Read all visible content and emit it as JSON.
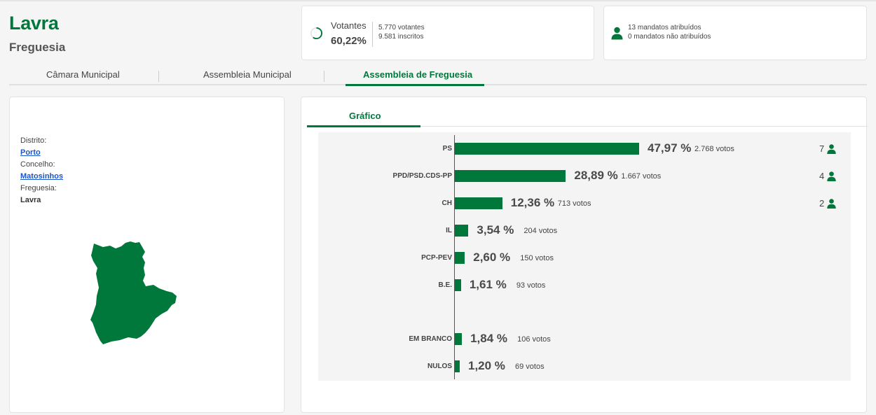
{
  "header": {
    "title": "Lavra",
    "subtitle": "Freguesia"
  },
  "votantes": {
    "label": "Votantes",
    "percent": "60,22%",
    "percent_value": 60.22,
    "voters": "5.770 votantes",
    "registered": "9.581 inscritos"
  },
  "mandatos": {
    "assigned": "13 mandatos atribuídos",
    "unassigned": "0 mandatos não atribuídos"
  },
  "tabs": [
    {
      "label": "Câmara Municipal"
    },
    {
      "label": "Assembleia Municipal"
    },
    {
      "label": "Assembleia de Freguesia"
    }
  ],
  "location": {
    "distrito_label": "Distrito:",
    "distrito": "Porto",
    "concelho_label": "Concelho:",
    "concelho": "Matosinhos",
    "freguesia_label": "Freguesia:",
    "freguesia": "Lavra"
  },
  "chart_tab": "Gráfico",
  "colors": {
    "accent": "#00783b",
    "link": "#1a55c9"
  },
  "chart_data": {
    "type": "bar",
    "orientation": "horizontal",
    "categories": [
      "PS",
      "PPD/PSD.CDS-PP",
      "CH",
      "IL",
      "PCP-PEV",
      "B.E.",
      "EM BRANCO",
      "NULOS"
    ],
    "values": [
      47.97,
      28.89,
      12.36,
      3.54,
      2.6,
      1.61,
      1.84,
      1.2
    ],
    "rows": [
      {
        "party": "PS",
        "pct": "47,97 %",
        "value": 47.97,
        "votos": "2.768 votos",
        "seats": "7"
      },
      {
        "party": "PPD/PSD.CDS-PP",
        "pct": "28,89 %",
        "value": 28.89,
        "votos": "1.667 votos",
        "seats": "4"
      },
      {
        "party": "CH",
        "pct": "12,36 %",
        "value": 12.36,
        "votos": "713 votos",
        "seats": "2"
      },
      {
        "party": "IL",
        "pct": "3,54 %",
        "value": 3.54,
        "votos": "204 votos",
        "seats": ""
      },
      {
        "party": "PCP-PEV",
        "pct": "2,60 %",
        "value": 2.6,
        "votos": "150 votos",
        "seats": ""
      },
      {
        "party": "B.E.",
        "pct": "1,61 %",
        "value": 1.61,
        "votos": "93 votos",
        "seats": ""
      },
      {
        "party": "EM BRANCO",
        "pct": "1,84 %",
        "value": 1.84,
        "votos": "106 votos",
        "seats": ""
      },
      {
        "party": "NULOS",
        "pct": "1,20 %",
        "value": 1.2,
        "votos": "69 votos",
        "seats": ""
      }
    ]
  }
}
